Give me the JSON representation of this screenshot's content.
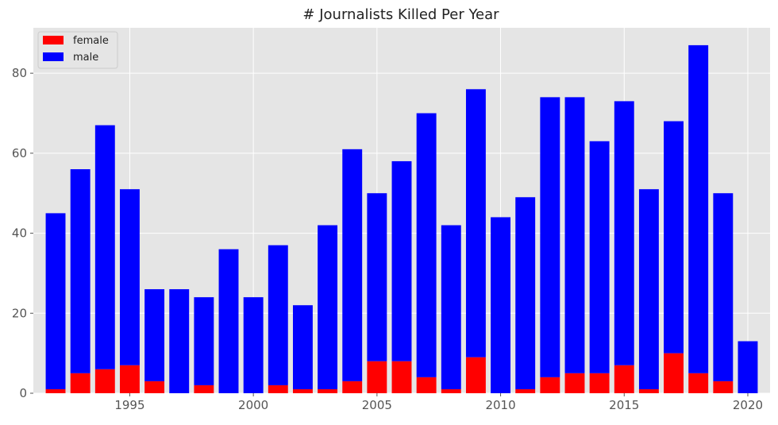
{
  "chart_data": {
    "type": "bar",
    "stacked": true,
    "title": "# Journalists Killed Per Year",
    "xlabel": "",
    "ylabel": "",
    "x": [
      1992,
      1993,
      1994,
      1995,
      1996,
      1997,
      1998,
      1999,
      2000,
      2001,
      2002,
      2003,
      2004,
      2005,
      2006,
      2007,
      2008,
      2009,
      2010,
      2011,
      2012,
      2013,
      2014,
      2015,
      2016,
      2017,
      2018,
      2019,
      2020
    ],
    "series": [
      {
        "name": "female",
        "color": "#ff0000",
        "values": [
          1,
          5,
          6,
          7,
          3,
          0,
          2,
          0,
          0,
          2,
          1,
          1,
          3,
          8,
          8,
          4,
          1,
          9,
          0,
          1,
          4,
          5,
          5,
          7,
          1,
          10,
          5,
          3,
          0
        ]
      },
      {
        "name": "male",
        "color": "#0000ff",
        "values": [
          44,
          51,
          61,
          44,
          23,
          26,
          22,
          36,
          24,
          35,
          21,
          41,
          58,
          42,
          50,
          66,
          41,
          67,
          44,
          48,
          70,
          69,
          58,
          66,
          50,
          58,
          82,
          47,
          13
        ]
      }
    ],
    "xlim": [
      1991.1,
      2020.9
    ],
    "ylim": [
      0,
      91.35
    ],
    "xticks": [
      1995,
      2000,
      2005,
      2010,
      2015,
      2020
    ],
    "yticks": [
      0,
      20,
      40,
      60,
      80
    ],
    "grid": true,
    "legend_position": "top-left",
    "background_color": "#e5e5e5",
    "grid_color": "#ffffff"
  }
}
